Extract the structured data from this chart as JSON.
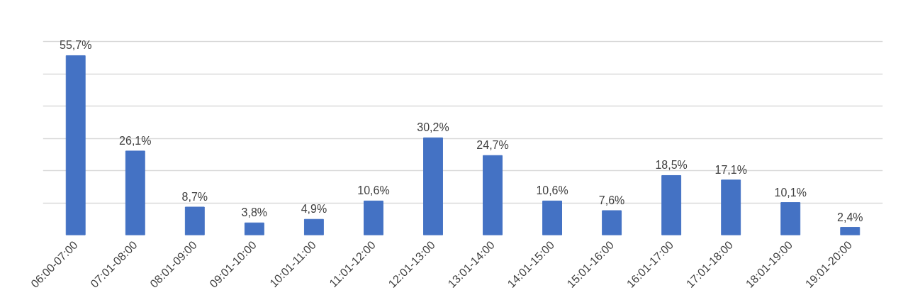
{
  "chart_data": {
    "type": "bar",
    "categories": [
      "06:00-07:00",
      "07:01-08:00",
      "08:01-09:00",
      "09:01-10:00",
      "10:01-11:00",
      "11:01-12:00",
      "12:01-13:00",
      "13:01-14:00",
      "14:01-15:00",
      "15:01-16:00",
      "16:01-17:00",
      "17:01-18:00",
      "18:01-19:00",
      "19:01-20:00"
    ],
    "values": [
      55.7,
      26.1,
      8.7,
      3.8,
      4.9,
      10.6,
      30.2,
      24.7,
      10.6,
      7.6,
      18.5,
      17.1,
      10.1,
      2.4
    ],
    "value_labels": [
      "55,7%",
      "26,1%",
      "8,7%",
      "3,8%",
      "4,9%",
      "10,6%",
      "30,2%",
      "24,7%",
      "10,6%",
      "7,6%",
      "18,5%",
      "17,1%",
      "10,1%",
      "2,4%"
    ],
    "color": "#4472c4",
    "grid": "y",
    "tick_labels": "x"
  }
}
